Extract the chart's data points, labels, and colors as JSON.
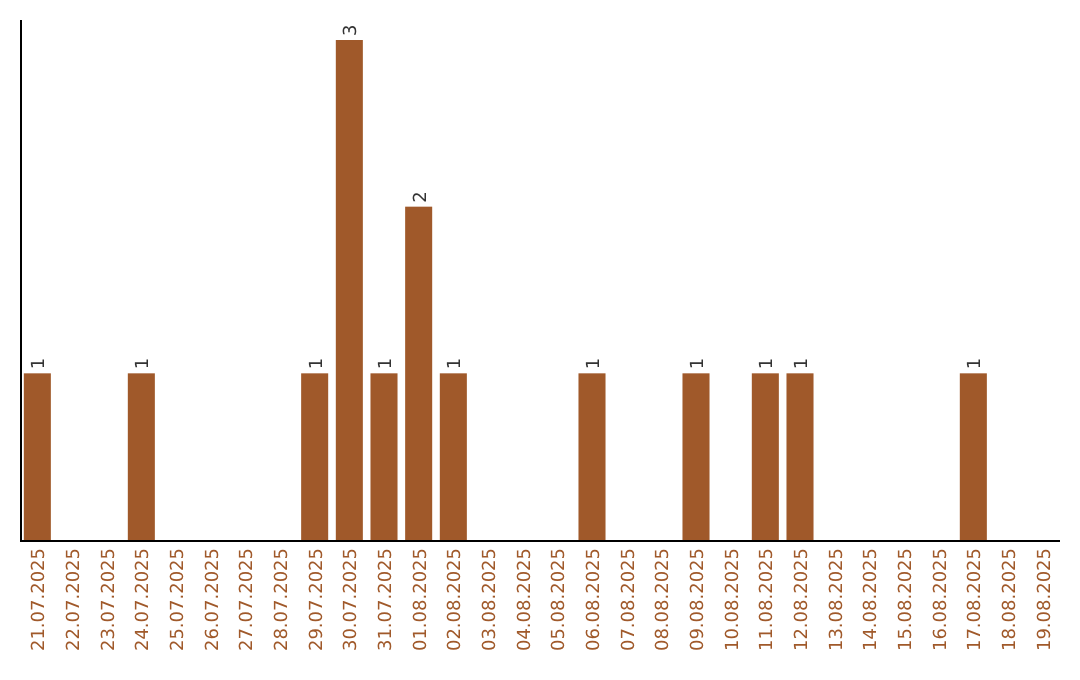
{
  "chart_data": {
    "type": "bar",
    "categories": [
      "21.07.2025",
      "22.07.2025",
      "23.07.2025",
      "24.07.2025",
      "25.07.2025",
      "26.07.2025",
      "27.07.2025",
      "28.07.2025",
      "29.07.2025",
      "30.07.2025",
      "31.07.2025",
      "01.08.2025",
      "02.08.2025",
      "03.08.2025",
      "04.08.2025",
      "05.08.2025",
      "06.08.2025",
      "07.08.2025",
      "08.08.2025",
      "09.08.2025",
      "10.08.2025",
      "11.08.2025",
      "12.08.2025",
      "13.08.2025",
      "14.08.2025",
      "15.08.2025",
      "16.08.2025",
      "17.08.2025",
      "18.08.2025",
      "19.08.2025"
    ],
    "values": [
      1,
      0,
      0,
      1,
      0,
      0,
      0,
      0,
      1,
      3,
      1,
      2,
      1,
      0,
      0,
      0,
      1,
      0,
      0,
      1,
      0,
      1,
      1,
      0,
      0,
      0,
      0,
      1,
      0,
      0
    ],
    "value_labels": [
      "1",
      null,
      null,
      "1",
      null,
      null,
      null,
      null,
      "1",
      "3",
      "1",
      "2",
      "1",
      null,
      null,
      null,
      "1",
      null,
      null,
      "1",
      null,
      "1",
      "1",
      null,
      null,
      null,
      null,
      "1",
      null,
      null
    ],
    "color": "#a0592a"
  }
}
